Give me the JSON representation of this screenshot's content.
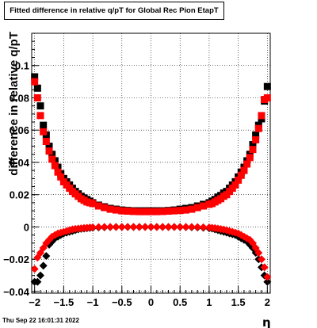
{
  "chart_data": {
    "type": "scatter",
    "title": "Fitted difference in relative q/pT for Global Rec Pion EtapT",
    "xlabel": "η",
    "ylabel": "difference in relative q/pT",
    "xlim": [
      -2.05,
      2.05
    ],
    "ylim": [
      -0.041,
      0.12
    ],
    "grid": true,
    "x_ticks": [
      "−2",
      "−1.5",
      "−1",
      "−0.5",
      "0",
      "0.5",
      "1",
      "1.5",
      "2"
    ],
    "y_ticks": [
      "−0.04",
      "−0.02",
      "0",
      "0.02",
      "0.04",
      "0.06",
      "0.08",
      "0.1"
    ],
    "series": [
      {
        "color": "#000000",
        "marker": "square",
        "x": [
          -2.0,
          -1.95,
          -1.9,
          -1.85,
          -1.8,
          -1.75,
          -1.7,
          -1.65,
          -1.6,
          -1.55,
          -1.5,
          -1.45,
          -1.4,
          -1.35,
          -1.3,
          -1.25,
          -1.2,
          -1.15,
          -1.1,
          -1.05,
          -1.0,
          -0.9,
          -0.8,
          -0.7,
          -0.6,
          -0.5,
          -0.4,
          -0.3,
          -0.2,
          -0.1,
          0.0,
          0.1,
          0.2,
          0.3,
          0.4,
          0.5,
          0.6,
          0.7,
          0.8,
          0.9,
          1.0,
          1.05,
          1.1,
          1.15,
          1.2,
          1.25,
          1.3,
          1.35,
          1.4,
          1.45,
          1.5,
          1.55,
          1.6,
          1.65,
          1.7,
          1.75,
          1.8,
          1.85,
          1.9,
          1.95,
          2.0
        ],
        "y": [
          0.093,
          0.086,
          0.075,
          0.063,
          0.057,
          0.05,
          0.045,
          0.041,
          0.037,
          0.033,
          0.03,
          0.028,
          0.026,
          0.024,
          0.022,
          0.0205,
          0.019,
          0.018,
          0.017,
          0.016,
          0.015,
          0.0135,
          0.0125,
          0.0115,
          0.011,
          0.0105,
          0.0102,
          0.01,
          0.01,
          0.01,
          0.01,
          0.01,
          0.01,
          0.0102,
          0.0105,
          0.011,
          0.0115,
          0.012,
          0.013,
          0.014,
          0.015,
          0.016,
          0.017,
          0.0185,
          0.0195,
          0.021,
          0.022,
          0.024,
          0.026,
          0.028,
          0.031,
          0.034,
          0.037,
          0.041,
          0.045,
          0.051,
          0.057,
          0.063,
          0.067,
          0.078,
          0.087
        ]
      },
      {
        "color": "#ff0000",
        "marker": "square",
        "x": [
          -2.0,
          -1.95,
          -1.9,
          -1.85,
          -1.8,
          -1.75,
          -1.7,
          -1.65,
          -1.6,
          -1.55,
          -1.5,
          -1.45,
          -1.4,
          -1.35,
          -1.3,
          -1.25,
          -1.2,
          -1.15,
          -1.1,
          -1.05,
          -1.0,
          -0.9,
          -0.8,
          -0.7,
          -0.6,
          -0.5,
          -0.4,
          -0.3,
          -0.2,
          -0.1,
          0.0,
          0.1,
          0.2,
          0.3,
          0.4,
          0.5,
          0.6,
          0.7,
          0.8,
          0.9,
          1.0,
          1.05,
          1.1,
          1.15,
          1.2,
          1.25,
          1.3,
          1.35,
          1.4,
          1.45,
          1.5,
          1.55,
          1.6,
          1.65,
          1.7,
          1.75,
          1.8,
          1.85,
          1.9,
          1.95,
          2.0
        ],
        "y": [
          0.09,
          0.08,
          0.069,
          0.059,
          0.053,
          0.047,
          0.042,
          0.038,
          0.034,
          0.031,
          0.028,
          0.026,
          0.024,
          0.022,
          0.0205,
          0.019,
          0.0175,
          0.0165,
          0.0155,
          0.015,
          0.0145,
          0.013,
          0.012,
          0.011,
          0.0105,
          0.01,
          0.0098,
          0.0096,
          0.0095,
          0.0095,
          0.0095,
          0.0095,
          0.0096,
          0.0098,
          0.01,
          0.0102,
          0.0105,
          0.011,
          0.012,
          0.013,
          0.014,
          0.0145,
          0.0155,
          0.0165,
          0.0175,
          0.019,
          0.02,
          0.022,
          0.024,
          0.026,
          0.029,
          0.032,
          0.035,
          0.039,
          0.043,
          0.048,
          0.054,
          0.061,
          0.069,
          0.079,
          0.08
        ]
      },
      {
        "color": "#000000",
        "marker": "diamond",
        "x": [
          -2.0,
          -1.95,
          -1.9,
          -1.85,
          -1.8,
          -1.75,
          -1.7,
          -1.65,
          -1.6,
          -1.55,
          -1.5,
          -1.45,
          -1.4,
          -1.35,
          -1.3,
          -1.25,
          -1.2,
          -1.15,
          -1.1,
          -1.05,
          -1.0,
          -0.9,
          -0.8,
          -0.7,
          -0.6,
          -0.5,
          -0.4,
          -0.3,
          -0.2,
          -0.1,
          0.0,
          0.1,
          0.2,
          0.3,
          0.4,
          0.5,
          0.6,
          0.7,
          0.8,
          0.9,
          1.0,
          1.05,
          1.1,
          1.15,
          1.2,
          1.25,
          1.3,
          1.35,
          1.4,
          1.45,
          1.5,
          1.55,
          1.6,
          1.65,
          1.7,
          1.75,
          1.8,
          1.85,
          1.9,
          1.95,
          2.0
        ],
        "y": [
          -0.034,
          -0.034,
          -0.03,
          -0.024,
          -0.018,
          -0.011,
          -0.009,
          -0.007,
          -0.006,
          -0.005,
          -0.004,
          -0.0035,
          -0.003,
          -0.0025,
          -0.002,
          -0.0015,
          -0.0012,
          -0.001,
          -0.0008,
          -0.0006,
          -0.0005,
          -0.0003,
          -0.0002,
          -0.0001,
          0.0,
          0.0,
          0.0,
          0.0,
          0.0,
          0.0,
          0.0,
          0.0,
          0.0,
          0.0,
          0.0,
          0.0,
          -0.0001,
          -0.0002,
          -0.0003,
          -0.0005,
          -0.0008,
          -0.001,
          -0.0015,
          -0.002,
          -0.0025,
          -0.003,
          -0.0035,
          -0.004,
          -0.0045,
          -0.005,
          -0.006,
          -0.007,
          -0.008,
          -0.009,
          -0.011,
          -0.013,
          -0.016,
          -0.02,
          -0.025,
          -0.03,
          -0.034
        ]
      },
      {
        "color": "#ff0000",
        "marker": "diamond",
        "x": [
          -2.0,
          -1.95,
          -1.9,
          -1.85,
          -1.8,
          -1.75,
          -1.7,
          -1.65,
          -1.6,
          -1.55,
          -1.5,
          -1.45,
          -1.4,
          -1.35,
          -1.3,
          -1.25,
          -1.2,
          -1.15,
          -1.1,
          -1.05,
          -1.0,
          -0.9,
          -0.8,
          -0.7,
          -0.6,
          -0.5,
          -0.4,
          -0.3,
          -0.2,
          -0.1,
          0.0,
          0.1,
          0.2,
          0.3,
          0.4,
          0.5,
          0.6,
          0.7,
          0.8,
          0.9,
          1.0,
          1.05,
          1.1,
          1.15,
          1.2,
          1.25,
          1.3,
          1.35,
          1.4,
          1.45,
          1.5,
          1.55,
          1.6,
          1.65,
          1.7,
          1.75,
          1.8,
          1.85,
          1.9,
          1.95,
          2.0
        ],
        "y": [
          -0.026,
          -0.019,
          -0.016,
          -0.013,
          -0.01,
          -0.008,
          -0.006,
          -0.005,
          -0.004,
          -0.0035,
          -0.003,
          -0.0025,
          -0.002,
          -0.0015,
          -0.0012,
          -0.001,
          -0.0008,
          -0.0006,
          -0.0005,
          -0.0003,
          -0.0002,
          -0.0001,
          0.0,
          0.0,
          0.0,
          0.0,
          0.0,
          0.0,
          0.0,
          0.0,
          0.0,
          0.0,
          0.0,
          0.0,
          0.0,
          0.0,
          0.0,
          0.0,
          -0.0001,
          -0.0002,
          -0.0003,
          -0.0005,
          -0.0007,
          -0.001,
          -0.0013,
          -0.0016,
          -0.002,
          -0.0025,
          -0.003,
          -0.0035,
          -0.004,
          -0.005,
          -0.006,
          -0.007,
          -0.008,
          -0.01,
          -0.013,
          -0.016,
          -0.02,
          -0.025,
          -0.031
        ]
      }
    ]
  },
  "footer": {
    "timestamp": "Thu Sep 22 16:01:31 2022"
  }
}
